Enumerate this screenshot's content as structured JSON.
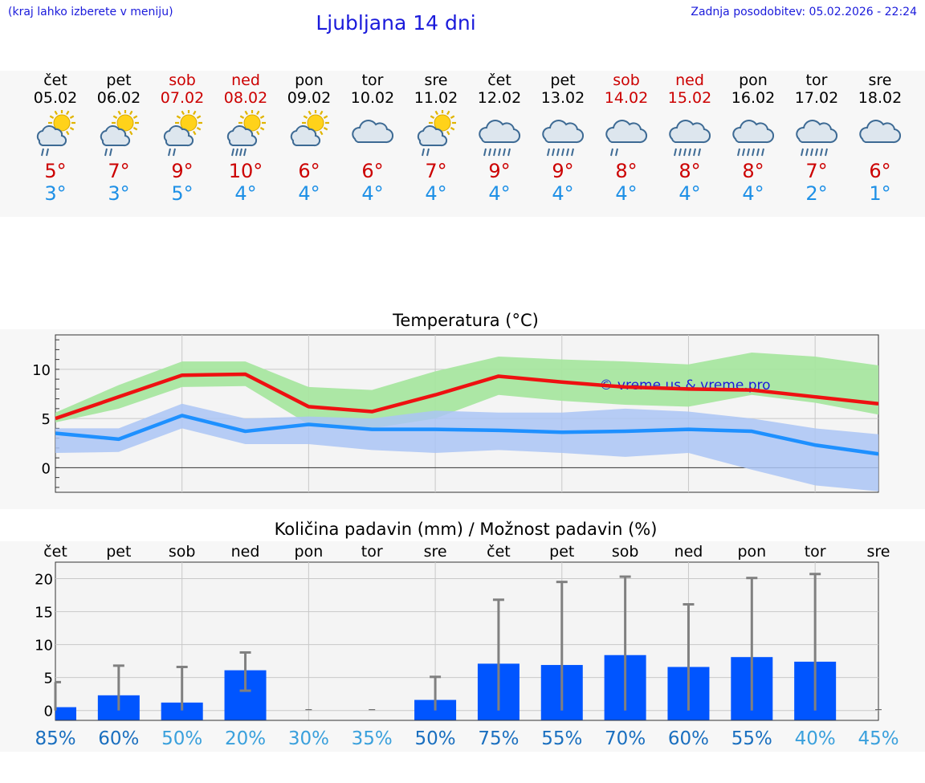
{
  "header": {
    "hint": "(kraj lahko izberete v meniju)",
    "title": "Ljubljana 14 dni",
    "updated": "Zadnja posodobitev: 05.02.2026 - 22:24"
  },
  "forecast": [
    {
      "day": "čet",
      "date": "05.02",
      "weekend": false,
      "icon": "sun-cloud-rain-icon",
      "max": "5°",
      "min": "3°"
    },
    {
      "day": "pet",
      "date": "06.02",
      "weekend": false,
      "icon": "sun-cloud-rain-icon",
      "max": "7°",
      "min": "3°"
    },
    {
      "day": "sob",
      "date": "07.02",
      "weekend": true,
      "icon": "sun-cloud-rain-icon",
      "max": "9°",
      "min": "5°"
    },
    {
      "day": "ned",
      "date": "08.02",
      "weekend": true,
      "icon": "sun-cloud-heavy-rain-icon",
      "max": "10°",
      "min": "4°"
    },
    {
      "day": "pon",
      "date": "09.02",
      "weekend": false,
      "icon": "sun-cloud-icon",
      "max": "6°",
      "min": "4°"
    },
    {
      "day": "tor",
      "date": "10.02",
      "weekend": false,
      "icon": "cloud-icon",
      "max": "6°",
      "min": "4°"
    },
    {
      "day": "sre",
      "date": "11.02",
      "weekend": false,
      "icon": "sun-cloud-rain-icon",
      "max": "7°",
      "min": "4°"
    },
    {
      "day": "čet",
      "date": "12.02",
      "weekend": false,
      "icon": "cloud-heavy-rain-icon",
      "max": "9°",
      "min": "4°"
    },
    {
      "day": "pet",
      "date": "13.02",
      "weekend": false,
      "icon": "cloud-heavy-rain-icon",
      "max": "9°",
      "min": "4°"
    },
    {
      "day": "sob",
      "date": "14.02",
      "weekend": true,
      "icon": "cloud-rain-icon",
      "max": "8°",
      "min": "4°"
    },
    {
      "day": "ned",
      "date": "15.02",
      "weekend": true,
      "icon": "cloud-heavy-rain-icon",
      "max": "8°",
      "min": "4°"
    },
    {
      "day": "pon",
      "date": "16.02",
      "weekend": false,
      "icon": "cloud-heavy-rain-icon",
      "max": "8°",
      "min": "4°"
    },
    {
      "day": "tor",
      "date": "17.02",
      "weekend": false,
      "icon": "cloud-heavy-rain-icon",
      "max": "7°",
      "min": "2°"
    },
    {
      "day": "sre",
      "date": "18.02",
      "weekend": false,
      "icon": "cloud-icon",
      "max": "6°",
      "min": "1°"
    }
  ],
  "colors": {
    "max_line": "#ee1111",
    "max_band": "#a8e6a0",
    "min_line": "#1e90ff",
    "min_band": "#aac4f5",
    "bar": "#0055ff",
    "whisker": "#808080",
    "pct_dark": "#1a6fbf",
    "pct_light": "#3aa0dc"
  },
  "chart_data": [
    {
      "type": "line",
      "title": "Temperatura (°C)",
      "watermark": "© vreme.us & vreme.pro",
      "ylim": [
        -2.5,
        13.5
      ],
      "yticks": [
        0,
        5,
        10
      ],
      "x": [
        0,
        1,
        2,
        3,
        4,
        5,
        6,
        7,
        8,
        9,
        10,
        11,
        12,
        13
      ],
      "series": [
        {
          "name": "max",
          "values": [
            5.0,
            7.2,
            9.4,
            9.5,
            6.2,
            5.7,
            7.4,
            9.3,
            8.7,
            8.2,
            8.0,
            7.9,
            7.2,
            6.5
          ],
          "band_low": [
            4.6,
            6.0,
            8.2,
            8.3,
            4.4,
            4.0,
            5.0,
            7.4,
            6.8,
            6.4,
            6.2,
            7.4,
            6.6,
            5.4
          ],
          "band_high": [
            5.6,
            8.4,
            10.8,
            10.8,
            8.2,
            7.9,
            9.8,
            11.3,
            11.0,
            10.8,
            10.5,
            11.7,
            11.3,
            10.4
          ]
        },
        {
          "name": "min",
          "values": [
            3.5,
            2.9,
            5.3,
            3.7,
            4.4,
            3.9,
            3.9,
            3.8,
            3.6,
            3.7,
            3.9,
            3.7,
            2.3,
            1.4
          ],
          "band_low": [
            1.5,
            1.6,
            4.0,
            2.4,
            2.4,
            1.8,
            1.5,
            1.8,
            1.5,
            1.1,
            1.5,
            -0.2,
            -1.8,
            -2.4
          ],
          "band_high": [
            4.0,
            4.0,
            6.5,
            5.0,
            5.2,
            5.0,
            5.8,
            5.6,
            5.6,
            6.0,
            5.7,
            5.0,
            4.0,
            3.4
          ]
        }
      ]
    },
    {
      "type": "bar",
      "title": "Količina padavin (mm) / Možnost padavin (%)",
      "categories": [
        "čet",
        "pet",
        "sob",
        "ned",
        "pon",
        "tor",
        "sre",
        "čet",
        "pet",
        "sob",
        "ned",
        "pon",
        "tor",
        "sre"
      ],
      "values": [
        0.5,
        2.3,
        1.2,
        6.1,
        0,
        0,
        1.6,
        7.1,
        6.9,
        8.4,
        6.6,
        8.1,
        7.4,
        0
      ],
      "err_low": [
        0,
        0,
        0,
        3.0,
        0,
        0,
        0,
        0,
        0,
        0,
        0,
        0,
        0,
        0
      ],
      "err_high": [
        4.3,
        6.8,
        6.6,
        8.8,
        0,
        0,
        5.1,
        16.8,
        19.5,
        20.3,
        16.1,
        20.1,
        20.7,
        0
      ],
      "probability": [
        "85%",
        "60%",
        "50%",
        "20%",
        "30%",
        "35%",
        "50%",
        "75%",
        "55%",
        "70%",
        "60%",
        "55%",
        "40%",
        "45%"
      ],
      "prob_shade": [
        "dark",
        "dark",
        "light",
        "light",
        "light",
        "light",
        "dark",
        "dark",
        "dark",
        "dark",
        "dark",
        "dark",
        "light",
        "light"
      ],
      "ylim": [
        -1.5,
        22.5
      ],
      "yticks": [
        0,
        5,
        10,
        15,
        20
      ]
    }
  ]
}
